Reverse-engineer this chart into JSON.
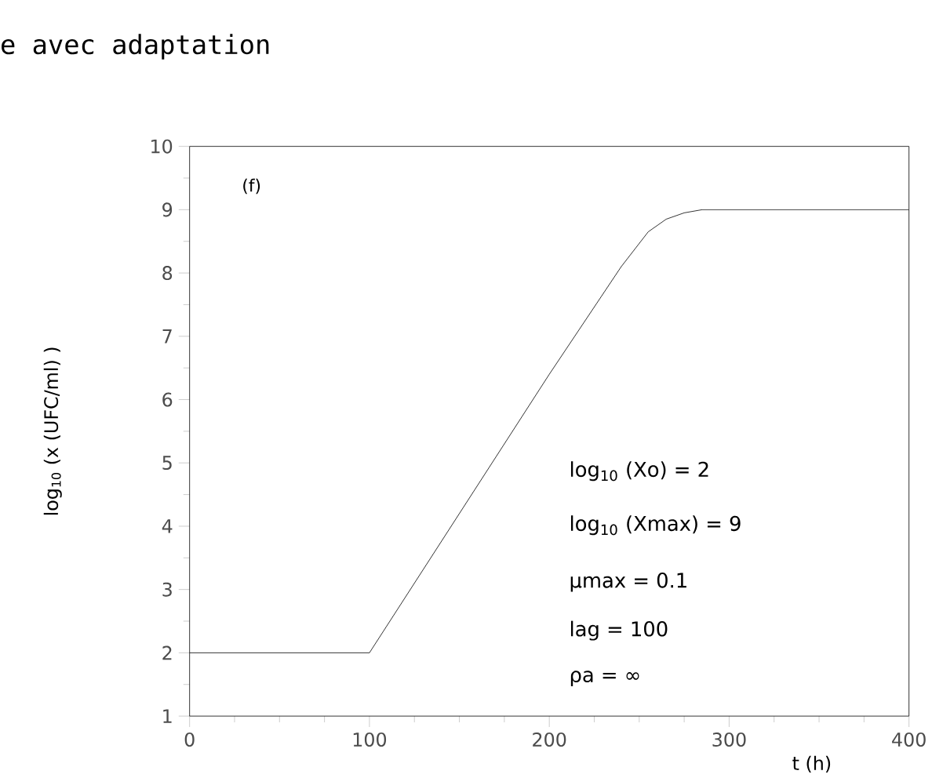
{
  "chart_data": {
    "type": "line",
    "title": "e avec adaptation",
    "xlabel": "t (h)",
    "ylabel": "log$_{10}$ (x (UFC/ml) )",
    "x": [
      0,
      100,
      150,
      200,
      240,
      255,
      265,
      275,
      285,
      400
    ],
    "series": [
      {
        "color": "#000000",
        "values": [
          2,
          2,
          4.2,
          6.4,
          8.1,
          8.65,
          8.85,
          8.95,
          9,
          9
        ]
      }
    ],
    "xlim": [
      0,
      400
    ],
    "ylim": [
      1,
      10
    ],
    "xticks": [
      0,
      100,
      200,
      300,
      400
    ],
    "yticks": [
      1,
      2,
      3,
      4,
      5,
      6,
      7,
      8,
      9,
      10
    ],
    "annotations": [
      "(f)",
      "log$_{10}$ (Xo) = 2",
      "log$_{10}$ (Xmax) = 9",
      "µmax = 0.1",
      "lag = 100",
      "ρa = ∞"
    ]
  }
}
